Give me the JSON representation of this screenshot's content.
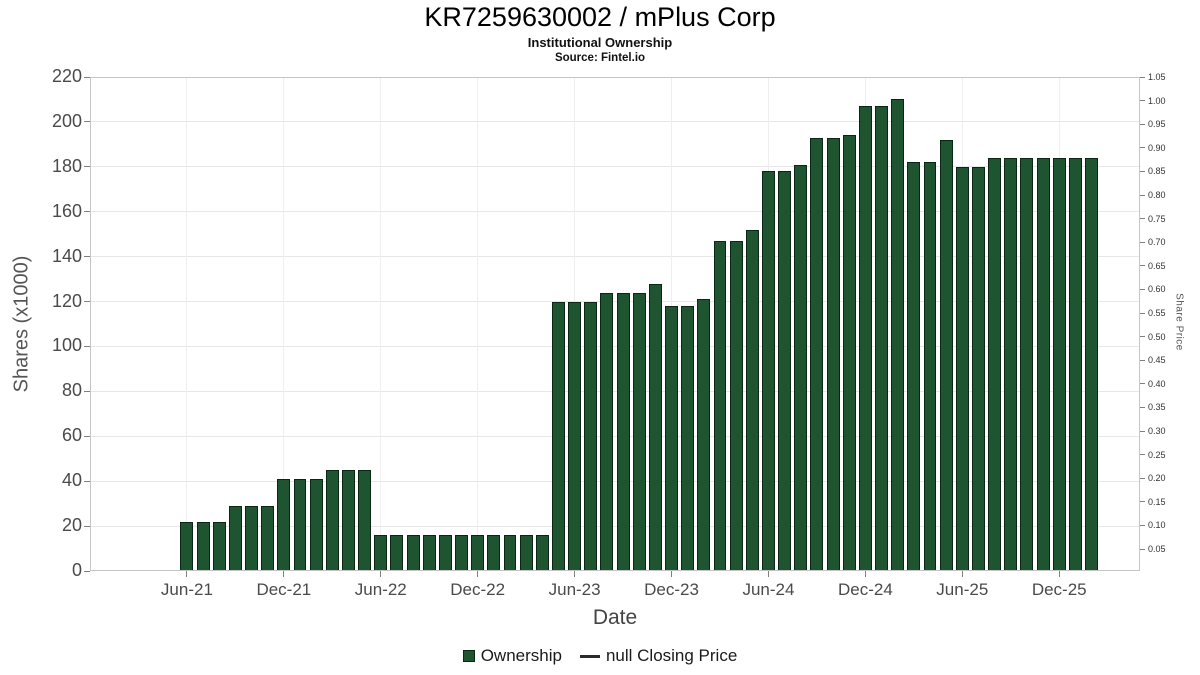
{
  "header": {
    "title": "KR7259630002 / mPlus Corp",
    "subtitle": "Institutional Ownership",
    "source": "Source: Fintel.io"
  },
  "axes": {
    "y_left_label": "Shares (x1000)",
    "y_right_label": "Share Price",
    "x_label": "Date"
  },
  "legend": {
    "ownership_label": "Ownership",
    "price_label": "null Closing Price"
  },
  "chart_data": {
    "type": "bar",
    "title": "KR7259630002 / mPlus Corp",
    "subtitle": "Institutional Ownership",
    "source": "Source: Fintel.io",
    "xlabel": "Date",
    "ylabel": "Shares (x1000)",
    "y2label": "Share Price",
    "ylim": [
      0,
      220
    ],
    "yticks": [
      0,
      20,
      40,
      60,
      80,
      100,
      120,
      140,
      160,
      180,
      200,
      220
    ],
    "y2ticks": [
      1.05,
      1.0,
      0.95,
      0.9,
      0.85,
      0.8,
      0.75,
      0.7,
      0.65,
      0.6,
      0.55,
      0.5,
      0.45,
      0.4,
      0.35,
      0.3,
      0.25,
      0.2,
      0.15,
      0.1,
      0.05
    ],
    "grid": true,
    "legend_position": "bottom",
    "bar_color": "#1e5430",
    "bar_border_color": "#0c2616",
    "x_total_slots": 65,
    "first_bar_slot": 6,
    "xticks": [
      {
        "label": "Jun-21",
        "index": 0
      },
      {
        "label": "Dec-21",
        "index": 6
      },
      {
        "label": "Jun-22",
        "index": 12
      },
      {
        "label": "Dec-22",
        "index": 18
      },
      {
        "label": "Jun-23",
        "index": 24
      },
      {
        "label": "Dec-23",
        "index": 30
      },
      {
        "label": "Jun-24",
        "index": 36
      },
      {
        "label": "Dec-24",
        "index": 42
      },
      {
        "label": "Jun-25",
        "index": 48
      },
      {
        "label": "Dec-25",
        "index": 54
      }
    ],
    "categories": [
      "Jun-21",
      "Jul-21",
      "Aug-21",
      "Sep-21",
      "Oct-21",
      "Nov-21",
      "Dec-21",
      "Jan-22",
      "Feb-22",
      "Mar-22",
      "Apr-22",
      "May-22",
      "Jun-22",
      "Jul-22",
      "Aug-22",
      "Sep-22",
      "Oct-22",
      "Nov-22",
      "Dec-22",
      "Jan-23",
      "Feb-23",
      "Mar-23",
      "Apr-23",
      "May-23",
      "Jun-23",
      "Jul-23",
      "Aug-23",
      "Sep-23",
      "Oct-23",
      "Nov-23",
      "Dec-23",
      "Jan-24",
      "Feb-24",
      "Mar-24",
      "Apr-24",
      "May-24",
      "Jun-24",
      "Jul-24",
      "Aug-24",
      "Sep-24",
      "Oct-24",
      "Nov-24",
      "Dec-24",
      "Jan-25",
      "Feb-25",
      "Mar-25",
      "Apr-25",
      "May-25",
      "Jun-25",
      "Jul-25",
      "Aug-25",
      "Sep-25",
      "Oct-25",
      "Nov-25",
      "Dec-25",
      "Jan-26",
      "Feb-26"
    ],
    "values": [
      22,
      22,
      22,
      29,
      29,
      29,
      41,
      41,
      41,
      45,
      45,
      45,
      16,
      16,
      16,
      16,
      16,
      16,
      16,
      16,
      16,
      16,
      16,
      120,
      120,
      120,
      124,
      124,
      124,
      128,
      118,
      118,
      121,
      147,
      147,
      152,
      178,
      178,
      181,
      193,
      193,
      194,
      207,
      207,
      210,
      182,
      182,
      192,
      180,
      180,
      184,
      184,
      184,
      184,
      184,
      184,
      184
    ]
  }
}
